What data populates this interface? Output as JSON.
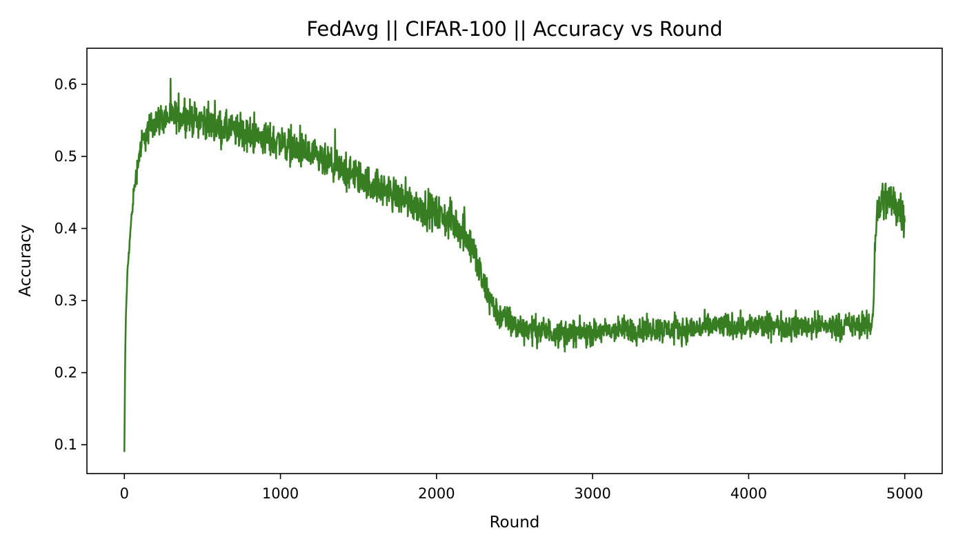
{
  "chart_data": {
    "type": "line",
    "title": "FedAvg || CIFAR-100 || Accuracy vs Round",
    "xlabel": "Round",
    "ylabel": "Accuracy",
    "xlim": [
      -240,
      5240
    ],
    "ylim": [
      0.06,
      0.65
    ],
    "xticks": [
      0,
      1000,
      2000,
      3000,
      4000,
      5000
    ],
    "xtick_labels": [
      "0",
      "1000",
      "2000",
      "3000",
      "4000",
      "5000"
    ],
    "yticks": [
      0.1,
      0.2,
      0.3,
      0.4,
      0.5,
      0.6
    ],
    "ytick_labels": [
      "0.1",
      "0.2",
      "0.3",
      "0.4",
      "0.5",
      "0.6"
    ],
    "grid": false,
    "legend": "none",
    "series": [
      {
        "color": "#377e22",
        "trend": {
          "x": [
            0,
            5,
            10,
            20,
            40,
            60,
            80,
            100,
            150,
            200,
            300,
            400,
            500,
            600,
            800,
            1000,
            1200,
            1400,
            1600,
            1800,
            2000,
            2100,
            2200,
            2250,
            2300,
            2400,
            2500,
            2600,
            2800,
            3000,
            3200,
            3400,
            3600,
            3800,
            4000,
            4200,
            4400,
            4600,
            4790,
            4800,
            4810,
            4820,
            4850,
            4900,
            5000
          ],
          "y": [
            0.09,
            0.22,
            0.28,
            0.34,
            0.4,
            0.45,
            0.48,
            0.51,
            0.535,
            0.55,
            0.555,
            0.555,
            0.55,
            0.54,
            0.53,
            0.52,
            0.5,
            0.48,
            0.46,
            0.44,
            0.42,
            0.41,
            0.39,
            0.36,
            0.32,
            0.28,
            0.265,
            0.26,
            0.255,
            0.255,
            0.26,
            0.26,
            0.26,
            0.265,
            0.265,
            0.265,
            0.265,
            0.265,
            0.265,
            0.3,
            0.38,
            0.42,
            0.44,
            0.44,
            0.42
          ]
        },
        "noise": {
          "x": [
            0,
            100,
            600,
            1200,
            1800,
            2200,
            2400,
            3000,
            4000,
            4790,
            4850,
            5000
          ],
          "amplitude": [
            0.0,
            0.03,
            0.035,
            0.035,
            0.035,
            0.04,
            0.03,
            0.026,
            0.026,
            0.026,
            0.045,
            0.045
          ]
        }
      }
    ]
  }
}
